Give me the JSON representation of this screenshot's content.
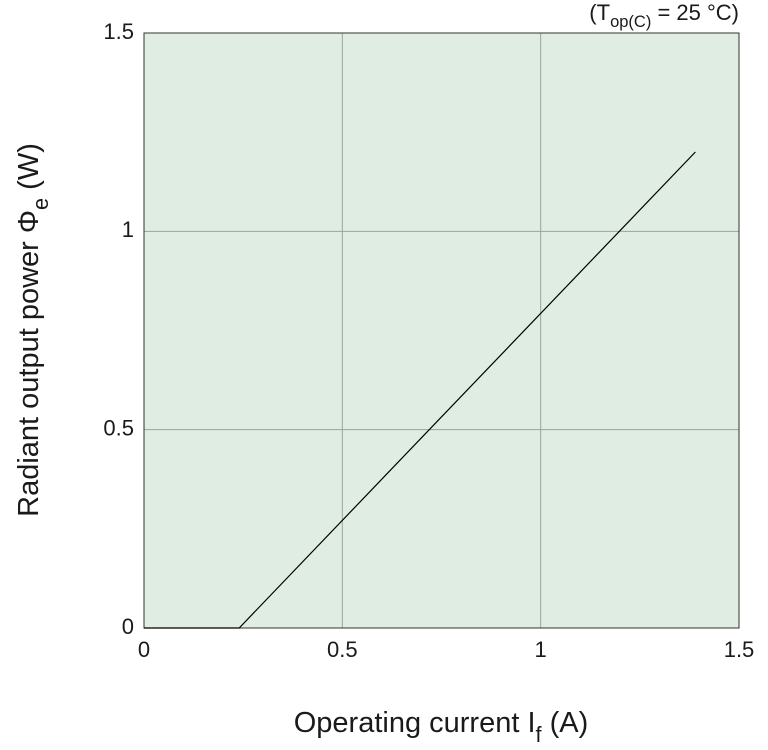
{
  "chart_data": {
    "type": "line",
    "annotation": [
      "(T",
      "op(C)",
      " = 25 °C)"
    ],
    "x_label": [
      "Operating current I",
      "f",
      " (A)"
    ],
    "y_label": [
      "Radiant output power Φ",
      "e",
      " (W)"
    ],
    "x": [
      0,
      0.24,
      1.39
    ],
    "series": [
      {
        "color": "#000000",
        "values": [
          0,
          0,
          1.2
        ]
      }
    ],
    "xlim": [
      0,
      1.5
    ],
    "xticks": [
      0,
      0.5,
      1,
      1.5
    ],
    "ylim": [
      0,
      1.5
    ],
    "yticks": [
      0,
      0.5,
      1,
      1.5
    ],
    "grid": true,
    "background": "#dfede2"
  }
}
